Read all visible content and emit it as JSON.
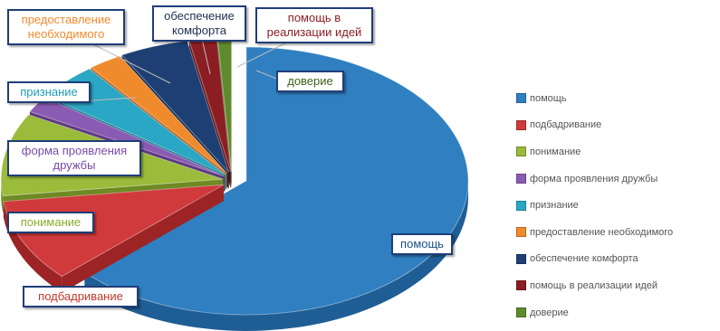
{
  "chart_data": {
    "type": "pie",
    "title": "",
    "legend_position": "right",
    "slices": [
      {
        "label": "помощь",
        "value": 63,
        "color": "#2f7fc1",
        "side": "#1f5e95"
      },
      {
        "label": "подбадривание",
        "value": 10,
        "color": "#d03a3c",
        "side": "#9c2425"
      },
      {
        "label": "понимание",
        "value": 10,
        "color": "#9bbb3b",
        "side": "#6f8a25"
      },
      {
        "label": "форма проявления дружбы",
        "value": 2,
        "color": "#8a5bb3",
        "side": "#5e3b80"
      },
      {
        "label": "признание",
        "value": 4.5,
        "color": "#2aa7c4",
        "side": "#1a7690"
      },
      {
        "label": "предоставление необходимого",
        "value": 2.5,
        "color": "#f08b2d",
        "side": "#b9621a"
      },
      {
        "label": "обеспечение комфорта",
        "value": 5,
        "color": "#1e3f73",
        "side": "#112a4f"
      },
      {
        "label": "помощь в реализации идей",
        "value": 2,
        "color": "#8b1e23",
        "side": "#5e1216"
      },
      {
        "label": "доверие",
        "value": 1,
        "color": "#5e8a2c",
        "side": "#3f601b"
      }
    ],
    "callouts": [
      {
        "label": "помощь",
        "text_color": "#1a4f86",
        "border": "#1f3e78"
      },
      {
        "label": "подбадривание",
        "text_color": "#c0392b",
        "border": "#1f3e78"
      },
      {
        "label": "понимание",
        "text_color": "#8aac2b",
        "border": "#1f3e78"
      },
      {
        "label": "форма проявления дружбы",
        "text_color": "#7a4aa5",
        "border": "#1f3e78"
      },
      {
        "label": "признание",
        "text_color": "#1f9bbb",
        "border": "#1f3e78"
      },
      {
        "label": "предоставление необходимого",
        "text_color": "#f08b2d",
        "border": "#1f3e78"
      },
      {
        "label": "обеспечение комфорта",
        "text_color": "#1e3050",
        "border": "#1f3e78"
      },
      {
        "label": "помощь в реализации идей",
        "text_color": "#8b1e23",
        "border": "#1f3e78"
      },
      {
        "label": "доверие",
        "text_color": "#3f601b",
        "border": "#1f3e78"
      }
    ]
  }
}
